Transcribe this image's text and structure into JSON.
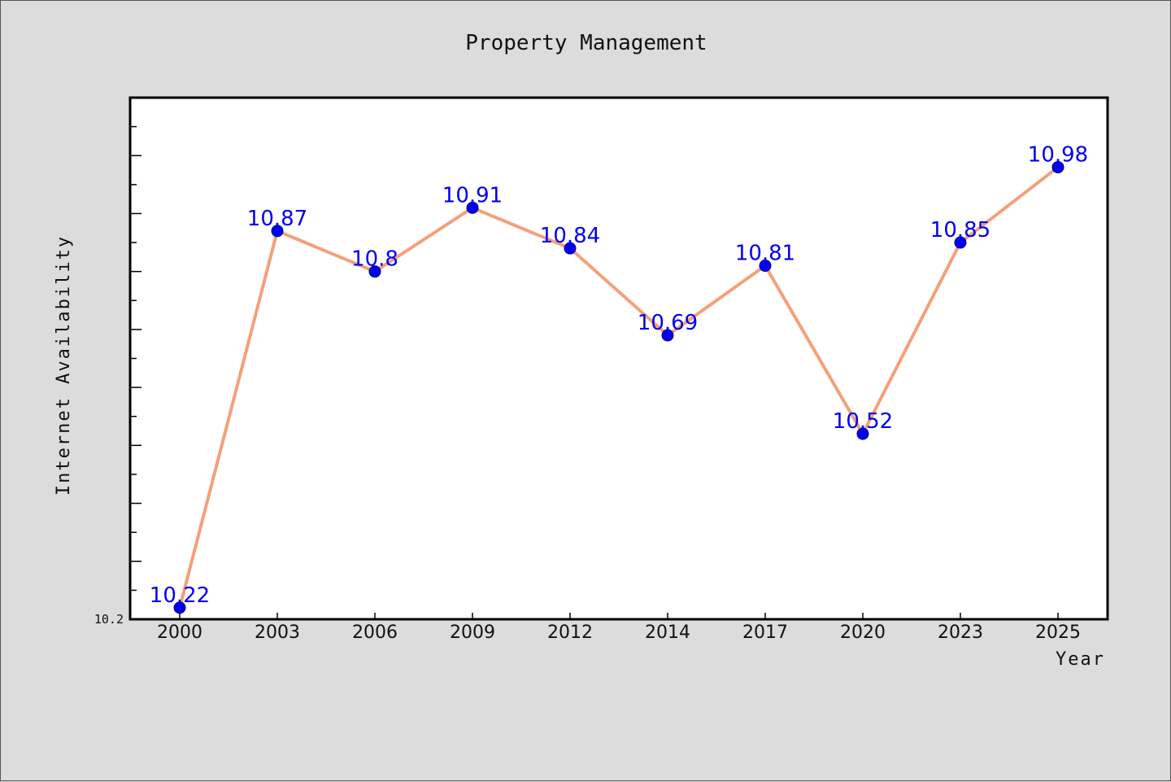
{
  "chart_data": {
    "type": "line",
    "title": "Property Management",
    "xlabel": "Year",
    "ylabel": "Internet Availability",
    "categories": [
      "2000",
      "2003",
      "2006",
      "2009",
      "2012",
      "2014",
      "2017",
      "2020",
      "2023",
      "2025"
    ],
    "values": [
      10.22,
      10.87,
      10.8,
      10.91,
      10.84,
      10.69,
      10.81,
      10.52,
      10.85,
      10.98
    ],
    "data_labels": [
      "10.22",
      "10.87",
      "10.8",
      "10.91",
      "10.84",
      "10.69",
      "10.81",
      "10.52",
      "10.85",
      "10.98"
    ],
    "ytick_labels": [
      "10.2"
    ],
    "ylim": [
      10.2,
      11.1
    ],
    "line_color": "#f4a07a",
    "marker_color": "#0000ee",
    "label_color": "#0000ee",
    "grid": false,
    "legend": "none"
  }
}
